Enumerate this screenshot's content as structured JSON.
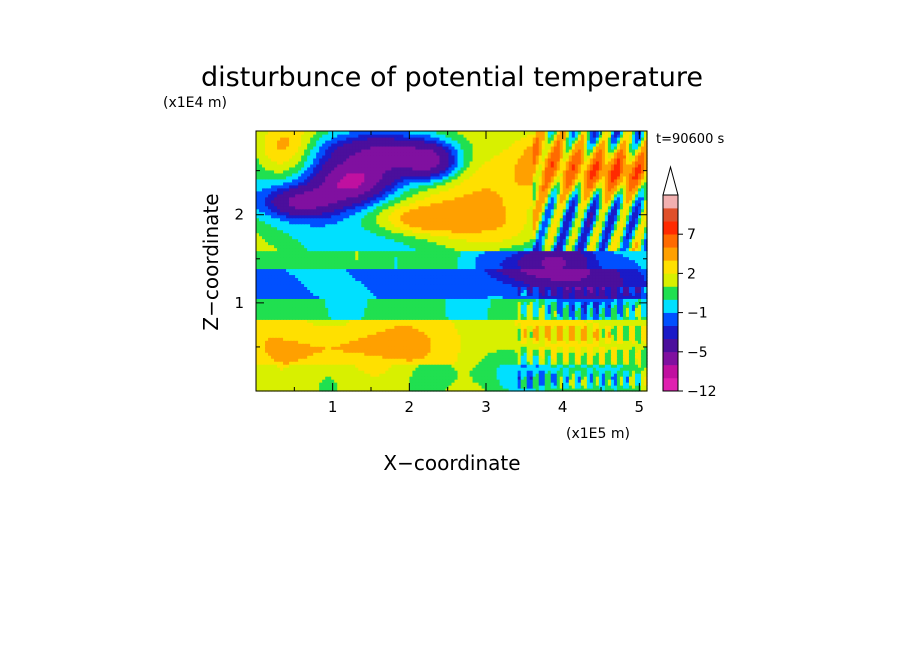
{
  "chart_data": {
    "type": "heatmap",
    "title": "disturbunce of potential temperature",
    "xlabel": "X−coordinate",
    "ylabel": "Z−coordinate",
    "x_unit": "(x1E5 m)",
    "y_unit": "(x1E4 m)",
    "time_label": "t=90600 s",
    "xlim": [
      0,
      5.1
    ],
    "ylim": [
      0,
      2.95
    ],
    "x_ticks": [
      {
        "value": 1,
        "label": "1"
      },
      {
        "value": 2,
        "label": "2"
      },
      {
        "value": 3,
        "label": "3"
      },
      {
        "value": 4,
        "label": "4"
      },
      {
        "value": 5,
        "label": "5"
      }
    ],
    "y_ticks": [
      {
        "value": 1,
        "label": "1"
      },
      {
        "value": 2,
        "label": "2"
      }
    ],
    "colorbar": {
      "levels": [
        -12,
        -9,
        -7,
        -5,
        -3,
        -2,
        -1,
        0,
        1,
        2,
        3,
        5,
        7,
        9,
        11
      ],
      "colors": [
        "#e020b0",
        "#c010a0",
        "#8010a0",
        "#4b0f9c",
        "#1a1ac8",
        "#0050ff",
        "#00e0ff",
        "#20e050",
        "#d8f000",
        "#ffe000",
        "#ffa000",
        "#ff6a00",
        "#ff2a00",
        "#e0502a",
        "#f2b0b0"
      ],
      "labeled_levels": [
        {
          "value": 7,
          "label": "7"
        },
        {
          "value": 2,
          "label": "2"
        },
        {
          "value": -1,
          "label": "−1"
        },
        {
          "value": -5,
          "label": "−5"
        },
        {
          "value": -12,
          "label": "−12"
        }
      ],
      "extend": "max"
    }
  }
}
